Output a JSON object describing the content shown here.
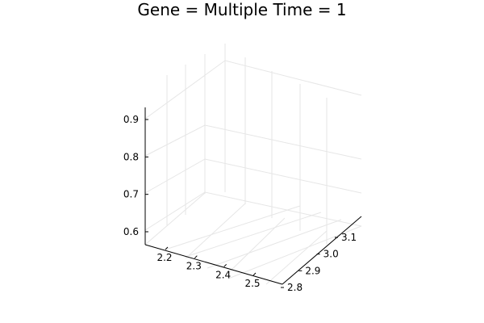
{
  "chart_data": {
    "type": "scatter",
    "dimensions": "3d",
    "title": "Gene = Multiple Time = 1",
    "xlabel": "",
    "ylabel": "",
    "zlabel": "",
    "x_ticks": [
      "2.2",
      "2.3",
      "2.4",
      "2.5"
    ],
    "y_ticks": [
      "2.8",
      "2.9",
      "3.0",
      "3.1"
    ],
    "z_ticks": [
      "0.6",
      "0.7",
      "0.8",
      "0.9"
    ],
    "x_values": [
      2.2,
      2.3,
      2.4,
      2.5
    ],
    "y_values": [
      2.8,
      2.9,
      3.0,
      3.1
    ],
    "z_values": [
      0.6,
      0.7,
      0.8,
      0.9
    ],
    "series": [],
    "grid": true,
    "legend": "none",
    "colors": {
      "axis": "#000000",
      "grid": "#e6e6e6",
      "background": "#ffffff"
    }
  }
}
